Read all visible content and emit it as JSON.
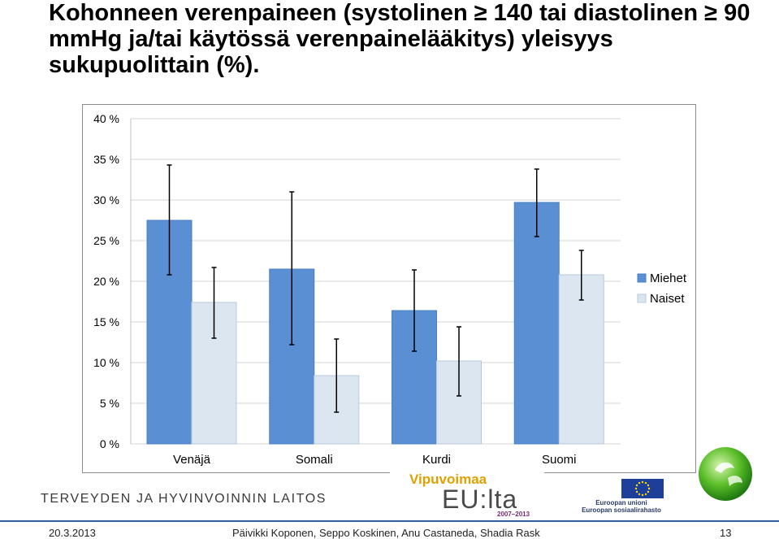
{
  "slide": {
    "title": "Kohonneen verenpaineen (systolinen ≥ 140 tai diastolinen ≥ 90 mmHg ja/tai käytössä verenpainelääkitys) yleisyys sukupuolittain (%).",
    "footer_date": "20.3.2013",
    "footer_authors": "Päivikki Koponen, Seppo Koskinen, Anu Castaneda, Shadia Rask",
    "footer_page": "13"
  },
  "logos": {
    "org_name": "TERVEYDEN JA HYVINVOINNIN LAITOS",
    "vipuvoimaa": "Vipuvoimaa",
    "eu_lta": "EU:lta",
    "years": "2007–2013",
    "eu_union": "Euroopan unioni",
    "eu_fund": "Euroopan sosiaalirahasto"
  },
  "colors": {
    "miehet": "#5b8fd4",
    "naiset": "#dce6f1",
    "grid": "#d4d4d4",
    "eu_blue": "#1d3f9a",
    "eu_star": "#ffdd00"
  },
  "chart_data": {
    "type": "bar",
    "categories": [
      "Venäjä",
      "Somali",
      "Kurdi",
      "Suomi"
    ],
    "series": [
      {
        "name": "Miehet",
        "values": [
          27.5,
          21.5,
          16.4,
          29.7
        ],
        "error_low": [
          20.8,
          12.2,
          11.4,
          25.5
        ],
        "error_high": [
          34.3,
          31.0,
          21.4,
          33.8
        ]
      },
      {
        "name": "Naiset",
        "values": [
          17.4,
          8.4,
          10.2,
          20.8
        ],
        "error_low": [
          13.0,
          3.9,
          5.9,
          17.7
        ],
        "error_high": [
          21.7,
          12.9,
          14.4,
          23.8
        ]
      }
    ],
    "ylim": [
      0,
      40
    ],
    "yticks": [
      0,
      5,
      10,
      15,
      20,
      25,
      30,
      35,
      40
    ],
    "ytick_labels": [
      "0 %",
      "5 %",
      "10 %",
      "15 %",
      "20 %",
      "25 %",
      "30 %",
      "35 %",
      "40 %"
    ],
    "grid": true,
    "legend": "right"
  }
}
